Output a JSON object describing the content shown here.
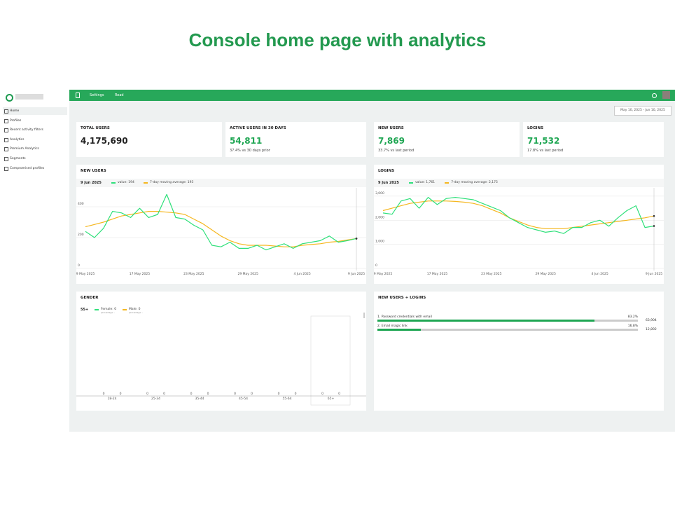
{
  "page_title": "Console home page with analytics",
  "sidebar": {
    "items": [
      "Home",
      "Profiles",
      "Recent activity filters",
      "Analytics",
      "Premium Analytics",
      "Segments",
      "Compromised profiles"
    ]
  },
  "topbar": {
    "tabs": [
      "Settings",
      "Read"
    ]
  },
  "date_range": "May 10, 2025 - Jun 10, 2025",
  "cards": [
    {
      "title": "TOTAL USERS",
      "value": "4,175,690"
    },
    {
      "title": "ACTIVE USERS IN 30 DAYS",
      "value": "54,811",
      "change": "37.4% vs 30 days prior"
    },
    {
      "title": "NEW USERS",
      "value": "7,869",
      "change": "33.7% vs last period"
    },
    {
      "title": "LOGINS",
      "value": "71,532",
      "change": "17.8% vs last period"
    }
  ],
  "new_users_chart": {
    "type": "line",
    "title": "NEW USERS",
    "hover_date": "9 Jun 2025",
    "series": [
      {
        "name": "value: 194",
        "color": "#2ee07a",
        "values": [
          240,
          200,
          260,
          370,
          360,
          330,
          390,
          330,
          350,
          480,
          330,
          320,
          280,
          250,
          150,
          140,
          170,
          130,
          130,
          150,
          120,
          140,
          160,
          130,
          160,
          170,
          180,
          210,
          170,
          180,
          194
        ]
      },
      {
        "name": "7-day moving average: 193",
        "color": "#f5b71f",
        "values": [
          270,
          285,
          300,
          320,
          340,
          350,
          360,
          370,
          370,
          365,
          360,
          350,
          320,
          290,
          250,
          210,
          180,
          160,
          150,
          150,
          150,
          145,
          140,
          140,
          150,
          155,
          160,
          170,
          175,
          185,
          193
        ]
      }
    ],
    "ylim": [
      0,
      500
    ],
    "yticks": [
      0,
      200,
      400
    ],
    "x_labels": [
      "9 May 2025",
      "17 May 2025",
      "23 May 2025",
      "29 May 2025",
      "4 Jun 2025",
      "9 Jun 2025"
    ]
  },
  "logins_chart": {
    "type": "line",
    "title": "LOGINS",
    "hover_date": "9 Jun 2025",
    "series": [
      {
        "name": "value: 1,761",
        "color": "#2ee07a",
        "values": [
          2300,
          2250,
          2800,
          2900,
          2500,
          2950,
          2650,
          2900,
          2950,
          2900,
          2850,
          2700,
          2550,
          2400,
          2100,
          1900,
          1700,
          1600,
          1500,
          1550,
          1450,
          1700,
          1700,
          1900,
          2000,
          1750,
          2100,
          2400,
          2600,
          1700,
          1761
        ]
      },
      {
        "name": "7-day moving average: 2,175",
        "color": "#f5b71f",
        "values": [
          2400,
          2500,
          2600,
          2700,
          2750,
          2800,
          2800,
          2800,
          2780,
          2750,
          2700,
          2600,
          2450,
          2300,
          2100,
          1950,
          1800,
          1700,
          1650,
          1650,
          1650,
          1700,
          1750,
          1800,
          1850,
          1900,
          1950,
          2000,
          2050,
          2100,
          2175
        ]
      }
    ],
    "ylim": [
      0,
      3200
    ],
    "yticks": [
      0,
      {
        "value": 1000,
        "label": "1,000"
      },
      {
        "value": 2000,
        "label": "2,000"
      },
      {
        "value": 3000,
        "label": "3,000"
      }
    ],
    "x_labels": [
      "9 May 2025",
      "17 May 2025",
      "23 May 2025",
      "29 May 2025",
      "4 Jun 2025",
      "9 Jun 2025"
    ]
  },
  "gender_chart": {
    "type": "bar",
    "title": "GENDER",
    "hover_category": "55+",
    "categories": [
      "18-24",
      "25-34",
      "35-44",
      "45-54",
      "55-64",
      "65+"
    ],
    "series": [
      {
        "name": "Female: 0",
        "note": "percentage: -",
        "color": "#2ee07a",
        "values": [
          0,
          0,
          0,
          0,
          0,
          0
        ]
      },
      {
        "name": "Male: 0",
        "note": "percentage: -",
        "color": "#f5b71f",
        "values": [
          0,
          0,
          0,
          0,
          0,
          0
        ]
      }
    ]
  },
  "funnel": {
    "title": "NEW USERS + LOGINS",
    "steps": [
      {
        "label": "1. Password credentials with email",
        "percent": 83.2,
        "percent_label": "83.2%",
        "count": "63,904"
      },
      {
        "label": "2. Email magic link",
        "percent": 16.8,
        "percent_label": "16.8%",
        "count": "12,892"
      }
    ]
  }
}
